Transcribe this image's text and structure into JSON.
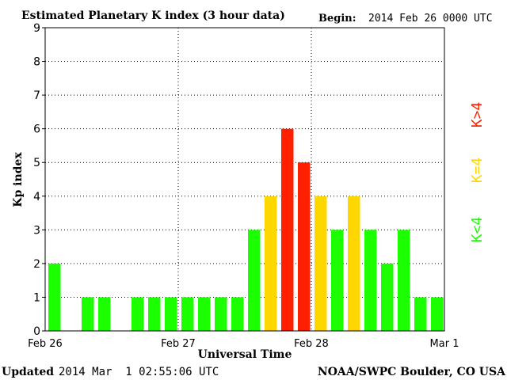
{
  "chart_data": {
    "type": "bar",
    "title": "Estimated Planetary K index (3 hour data)",
    "begin_label": "Begin:",
    "begin_value": "2014 Feb 26 0000 UTC",
    "ylabel": "Kp index",
    "xlabel": "Universal Time",
    "ylim": [
      0,
      9
    ],
    "yticks": [
      "0",
      "1",
      "2",
      "3",
      "4",
      "5",
      "6",
      "7",
      "8",
      "9"
    ],
    "xticks": [
      "Feb 26",
      "Feb 27",
      "Feb 28",
      "Mar 1"
    ],
    "grid": true,
    "values": [
      2,
      0,
      1,
      1,
      0,
      1,
      1,
      1,
      1,
      1,
      1,
      1,
      3,
      4,
      6,
      5,
      4,
      3,
      4,
      3,
      2,
      3,
      1,
      1
    ],
    "colors": {
      "below4": "#1cff00",
      "equal4": "#ffd700",
      "above4": "#ff2000"
    },
    "legend": [
      "K<4",
      "K=4",
      "K>4"
    ],
    "legend_placement": "right"
  },
  "footer": {
    "updated_label": "Updated",
    "updated_value": "2014 Mar  1 02:55:06 UTC",
    "source": "NOAA/SWPC Boulder, CO USA"
  }
}
